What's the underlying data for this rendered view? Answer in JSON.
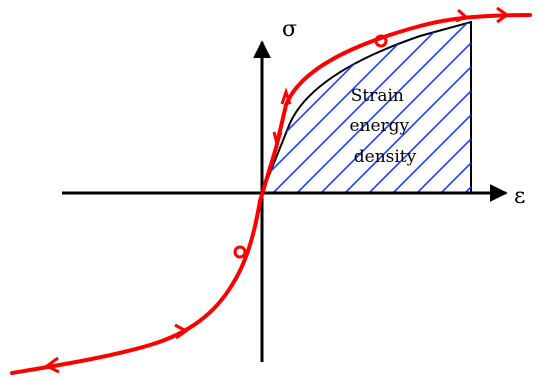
{
  "axes": {
    "y_label": "σ",
    "x_label": "ε"
  },
  "region": {
    "label_lines": [
      "Strain",
      "energy",
      "density"
    ]
  },
  "colors": {
    "curve": "#ff0000",
    "hatch": "#1e3cff",
    "axis": "#000000",
    "background": "#ffffff"
  }
}
